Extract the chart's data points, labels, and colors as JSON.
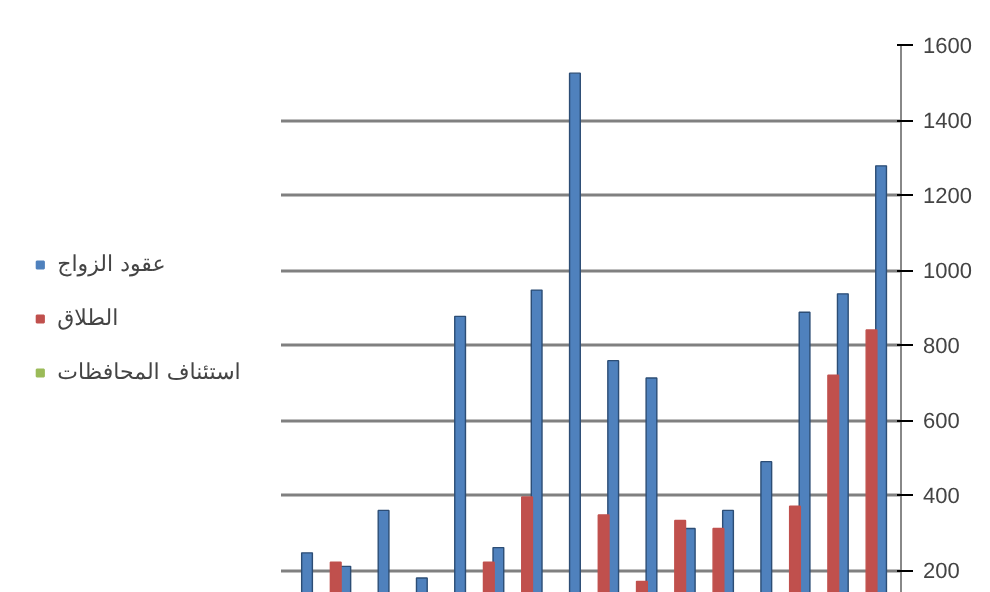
{
  "chart_data": {
    "type": "bar",
    "categories": [
      null,
      null,
      null,
      null,
      null,
      null,
      null,
      null,
      null,
      null,
      null,
      null,
      null,
      null,
      null,
      null
    ],
    "series": [
      {
        "name": "عقود الزواج",
        "color": "#4f81bd",
        "values": [
          247,
          211,
          360,
          180,
          877,
          261,
          947,
          1525,
          759,
          713,
          312,
          360,
          490,
          888,
          937,
          1278
        ]
      },
      {
        "name": "الطلاق",
        "color": "#c0504d",
        "values": [
          null,
          222,
          null,
          null,
          null,
          222,
          396,
          null,
          348,
          171,
          333,
          312,
          null,
          371,
          720,
          841
        ]
      },
      {
        "name": "استئناف المحافظات",
        "color": "#9bbb59",
        "values": [
          null,
          null,
          null,
          null,
          null,
          null,
          null,
          null,
          null,
          null,
          null,
          null,
          null,
          null,
          null,
          null
        ]
      }
    ],
    "ylim": [
      140,
      1600
    ],
    "yticks": [
      200,
      400,
      600,
      800,
      1000,
      1200,
      1400,
      1600
    ],
    "grid": "y",
    "legend": "left",
    "tick_labels": "y"
  }
}
